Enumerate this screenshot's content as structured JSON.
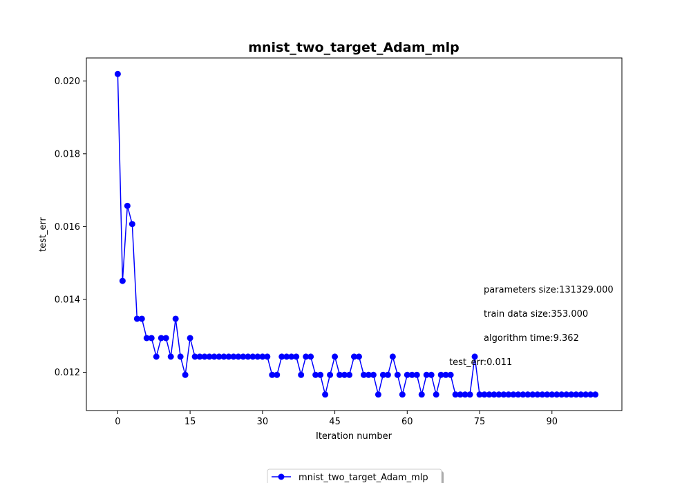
{
  "chart_data": {
    "type": "line",
    "title": "mnist_two_target_Adam_mlp",
    "xlabel": "Iteration number",
    "ylabel": "test_err",
    "xlim": [
      -6.5,
      104.5
    ],
    "ylim": [
      0.01095,
      0.02063
    ],
    "xticks": [
      0,
      15,
      30,
      45,
      60,
      75,
      90
    ],
    "yticks": [
      0.012,
      0.014,
      0.016,
      0.018,
      0.02
    ],
    "ytick_labels": [
      "0.012",
      "0.014",
      "0.016",
      "0.018",
      "0.020"
    ],
    "grid": false,
    "legend_position": "bottom-center",
    "series": [
      {
        "name": "mnist_two_target_Adam_mlp",
        "color": "#0000ff",
        "marker": "circle",
        "x": [
          0,
          1,
          2,
          3,
          4,
          5,
          6,
          7,
          8,
          9,
          10,
          11,
          12,
          13,
          14,
          15,
          16,
          17,
          18,
          19,
          20,
          21,
          22,
          23,
          24,
          25,
          26,
          27,
          28,
          29,
          30,
          31,
          32,
          33,
          34,
          35,
          36,
          37,
          38,
          39,
          40,
          41,
          42,
          43,
          44,
          45,
          46,
          47,
          48,
          49,
          50,
          51,
          52,
          53,
          54,
          55,
          56,
          57,
          58,
          59,
          60,
          61,
          62,
          63,
          64,
          65,
          66,
          67,
          68,
          69,
          70,
          71,
          72,
          73,
          74,
          75,
          76,
          77,
          78,
          79,
          80,
          81,
          82,
          83,
          84,
          85,
          86,
          87,
          88,
          89,
          90,
          91,
          92,
          93,
          94,
          95,
          96,
          97,
          98,
          99
        ],
        "y": [
          0.02019,
          0.01451,
          0.01657,
          0.01607,
          0.01347,
          0.01347,
          0.01294,
          0.01294,
          0.01243,
          0.01294,
          0.01294,
          0.01243,
          0.01347,
          0.01243,
          0.01193,
          0.01294,
          0.01243,
          0.01243,
          0.01243,
          0.01243,
          0.01243,
          0.01243,
          0.01243,
          0.01243,
          0.01243,
          0.01243,
          0.01243,
          0.01243,
          0.01243,
          0.01243,
          0.01243,
          0.01243,
          0.01193,
          0.01193,
          0.01243,
          0.01243,
          0.01243,
          0.01243,
          0.01193,
          0.01243,
          0.01243,
          0.01193,
          0.01193,
          0.01139,
          0.01193,
          0.01243,
          0.01193,
          0.01193,
          0.01193,
          0.01243,
          0.01243,
          0.01193,
          0.01193,
          0.01193,
          0.01139,
          0.01193,
          0.01193,
          0.01243,
          0.01193,
          0.01139,
          0.01193,
          0.01193,
          0.01193,
          0.01139,
          0.01193,
          0.01193,
          0.01139,
          0.01193,
          0.01193,
          0.01193,
          0.01139,
          0.01139,
          0.01139,
          0.01139,
          0.01243,
          0.01139,
          0.01139,
          0.01139,
          0.01139,
          0.01139,
          0.01139,
          0.01139,
          0.01139,
          0.01139,
          0.01139,
          0.01139,
          0.01139,
          0.01139,
          0.01139,
          0.01139,
          0.01139,
          0.01139,
          0.01139,
          0.01139,
          0.01139,
          0.01139,
          0.01139,
          0.01139,
          0.01139,
          0.01139
        ]
      }
    ],
    "annotations": [
      "parameters size:131329.000",
      "train data size:353.000",
      "algorithm time:9.362",
      "test_err:0.011"
    ]
  }
}
